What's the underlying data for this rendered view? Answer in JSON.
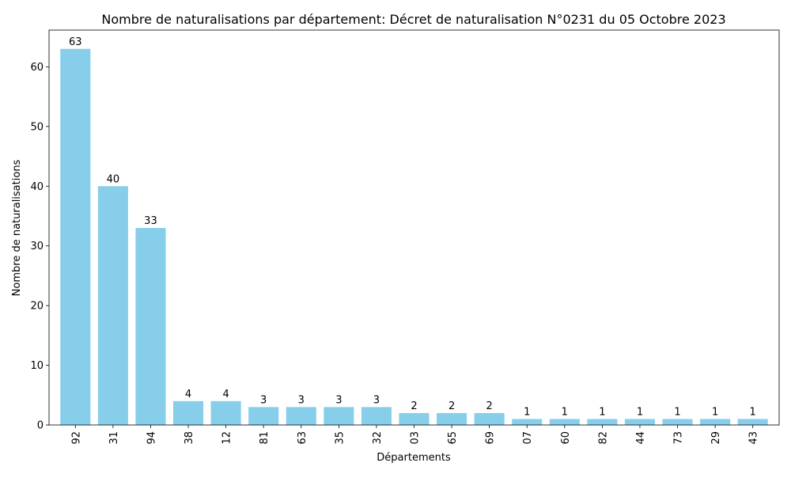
{
  "chart_data": {
    "type": "bar",
    "title": "Nombre de naturalisations par département: Décret de naturalisation N°0231 du 05 Octobre 2023",
    "xlabel": "Départements",
    "ylabel": "Nombre de naturalisations",
    "categories": [
      "92",
      "31",
      "94",
      "38",
      "12",
      "81",
      "63",
      "35",
      "32",
      "03",
      "65",
      "69",
      "07",
      "60",
      "82",
      "44",
      "73",
      "29",
      "43"
    ],
    "values": [
      63,
      40,
      33,
      4,
      4,
      3,
      3,
      3,
      3,
      2,
      2,
      2,
      1,
      1,
      1,
      1,
      1,
      1,
      1
    ],
    "ylim": [
      0,
      66.15
    ],
    "yticks": [
      0,
      10,
      20,
      30,
      40,
      50,
      60
    ],
    "bar_color": "#87CEEB",
    "grid": false,
    "data_labels": true
  }
}
